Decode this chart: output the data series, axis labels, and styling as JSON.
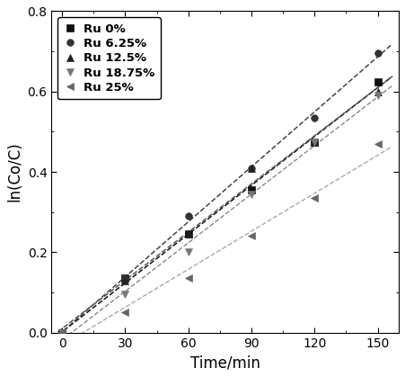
{
  "title": "",
  "xlabel": "Time/min",
  "ylabel": "ln(Co/C)",
  "xlim": [
    -5,
    160
  ],
  "ylim": [
    0.0,
    0.8
  ],
  "xticks": [
    0,
    30,
    60,
    90,
    120,
    150
  ],
  "yticks": [
    0.0,
    0.2,
    0.4,
    0.6,
    0.8
  ],
  "series": [
    {
      "label": "Ru 0%",
      "x": [
        0,
        30,
        60,
        90,
        120,
        150
      ],
      "y": [
        0.0,
        0.135,
        0.245,
        0.355,
        0.475,
        0.625
      ],
      "marker": "s",
      "color": "#111111",
      "line_color": "#111111",
      "line_style": "--",
      "markersize": 5.5,
      "lw": 1.1
    },
    {
      "label": "Ru 6.25%",
      "x": [
        0,
        30,
        60,
        90,
        120,
        150
      ],
      "y": [
        0.0,
        0.135,
        0.29,
        0.41,
        0.535,
        0.695
      ],
      "marker": "o",
      "color": "#333333",
      "line_color": "#444444",
      "line_style": "--",
      "markersize": 5.5,
      "lw": 1.1
    },
    {
      "label": "Ru 12.5%",
      "x": [
        0,
        30,
        60,
        90,
        120,
        150
      ],
      "y": [
        0.0,
        0.13,
        0.245,
        0.41,
        0.475,
        0.6
      ],
      "marker": "^",
      "color": "#222222",
      "line_color": "#555555",
      "line_style": "--",
      "markersize": 5.5,
      "lw": 1.1
    },
    {
      "label": "Ru 18.75%",
      "x": [
        0,
        30,
        60,
        90,
        120,
        150
      ],
      "y": [
        0.0,
        0.095,
        0.2,
        0.345,
        0.475,
        0.59
      ],
      "marker": "v",
      "color": "#777777",
      "line_color": "#888888",
      "line_style": "--",
      "markersize": 5.5,
      "lw": 1.0
    },
    {
      "label": "Ru 25%",
      "x": [
        0,
        30,
        60,
        90,
        120,
        150
      ],
      "y": [
        0.0,
        0.05,
        0.135,
        0.24,
        0.335,
        0.47
      ],
      "marker": "<",
      "color": "#666666",
      "line_color": "#aaaaaa",
      "line_style": "--",
      "markersize": 5.5,
      "lw": 1.0
    }
  ],
  "legend_fontsize": 9.5,
  "axis_fontsize": 12,
  "tick_fontsize": 10,
  "figsize": [
    4.51,
    4.19
  ],
  "dpi": 100
}
